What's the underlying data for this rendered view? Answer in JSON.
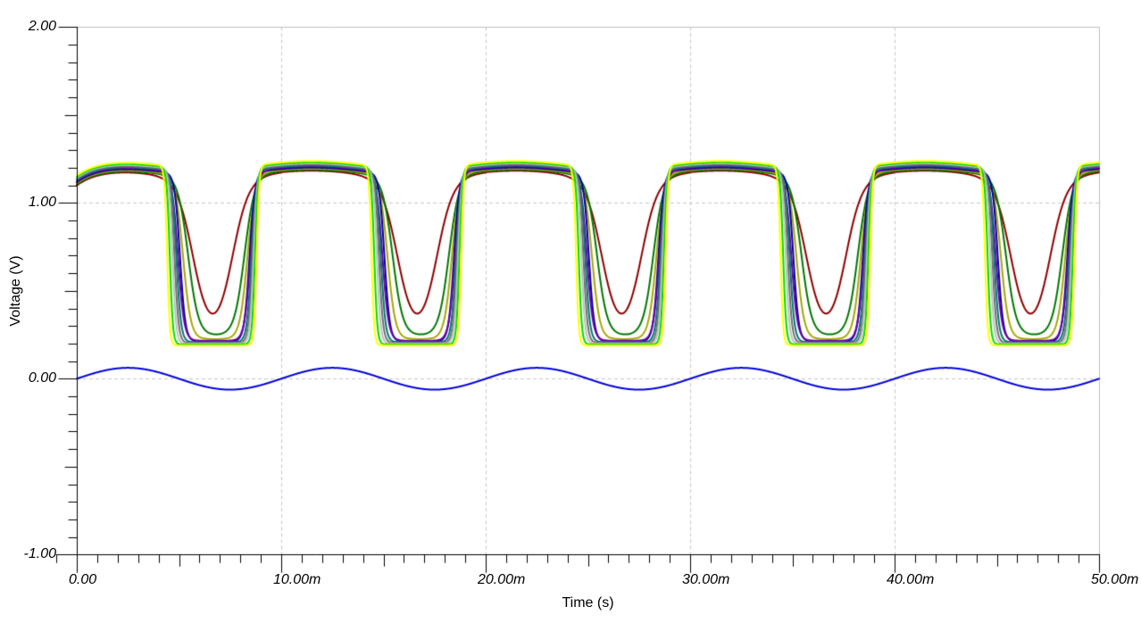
{
  "window": {
    "background": "#FFFFFF"
  },
  "chart_data": {
    "type": "line",
    "title": "",
    "xlabel": "Time (s)",
    "ylabel": "Voltage (V)",
    "x_axis": {
      "range_ms": [
        0,
        50
      ],
      "major_ticks": [
        {
          "ms": 0,
          "label": "0.00"
        },
        {
          "ms": 10,
          "label": "10.00m"
        },
        {
          "ms": 20,
          "label": "20.00m"
        },
        {
          "ms": 30,
          "label": "30.00m"
        },
        {
          "ms": 40,
          "label": "40.00m"
        },
        {
          "ms": 50,
          "label": "50.00m"
        }
      ],
      "minor_divisions_per_major": 10
    },
    "y_axis": {
      "range_v": [
        -1,
        2
      ],
      "major_ticks": [
        {
          "v": 2,
          "label": "2.00"
        },
        {
          "v": 1,
          "label": "1.00"
        },
        {
          "v": 0,
          "label": "0.00"
        },
        {
          "v": -1,
          "label": "-1.00"
        }
      ],
      "minor_divisions_per_major": 10
    },
    "grid": {
      "style": "dashed",
      "color": "#C8C8C8",
      "vertical_lines_ms": [
        10,
        20,
        30,
        40
      ],
      "horizontal_lines_v": [
        1,
        0
      ]
    },
    "axis_color": "#000000",
    "border_color": "#C0C0C0",
    "legend": "none",
    "waveform_period_ms": 10,
    "plateau_ripple": {
      "amplitude_v": 0.02,
      "peak_phase_ms": 1.5
    },
    "startup_transient": {
      "dip_v": 0.075,
      "tau_ms": 1.0
    },
    "series": [
      {
        "id": "input-sine",
        "model": "sine",
        "color": "#0000E0",
        "amplitude_v": 0.062,
        "offset_v": 0,
        "period_ms": 10,
        "phase_delay_ms": 0
      },
      {
        "id": "stage-1-maroon",
        "model": "pulse",
        "color": "#900000",
        "high_v": 1.163,
        "low_v": 0.22,
        "fall_center_ms": 5.7,
        "rise_center_ms": 7.6,
        "edge_width_ms": 0.8
      },
      {
        "id": "stage-2-dark-green",
        "model": "pulse",
        "color": "#007800",
        "high_v": 1.169,
        "low_v": 0.245,
        "fall_center_ms": 5.45,
        "rise_center_ms": 8.2,
        "edge_width_ms": 0.5
      },
      {
        "id": "stage-3-olive",
        "model": "pulse",
        "color": "#A8A800",
        "high_v": 1.175,
        "low_v": 0.225,
        "fall_center_ms": 5.2,
        "rise_center_ms": 8.35,
        "edge_width_ms": 0.38
      },
      {
        "id": "stage-4-navy",
        "model": "pulse",
        "color": "#0000A0",
        "high_v": 1.181,
        "low_v": 0.212,
        "fall_center_ms": 5.05,
        "rise_center_ms": 8.45,
        "edge_width_ms": 0.26
      },
      {
        "id": "stage-5-purple",
        "model": "pulse",
        "color": "#7000A8",
        "high_v": 1.187,
        "low_v": 0.216,
        "fall_center_ms": 4.95,
        "rise_center_ms": 8.5,
        "edge_width_ms": 0.3
      },
      {
        "id": "stage-6-teal",
        "model": "pulse",
        "color": "#007878",
        "high_v": 1.193,
        "low_v": 0.208,
        "fall_center_ms": 4.87,
        "rise_center_ms": 8.55,
        "edge_width_ms": 0.23
      },
      {
        "id": "stage-7-gray",
        "model": "pulse",
        "color": "#707070",
        "high_v": 1.199,
        "low_v": 0.204,
        "fall_center_ms": 4.78,
        "rise_center_ms": 8.6,
        "edge_width_ms": 0.2
      },
      {
        "id": "stage-8-silver",
        "model": "pulse",
        "color": "#C0C0C0",
        "high_v": 1.205,
        "low_v": 0.2,
        "fall_center_ms": 4.68,
        "rise_center_ms": 8.65,
        "edge_width_ms": 0.18
      },
      {
        "id": "stage-9-lime",
        "model": "pulse",
        "color": "#00DC00",
        "high_v": 1.211,
        "low_v": 0.195,
        "fall_center_ms": 4.55,
        "rise_center_ms": 8.72,
        "edge_width_ms": 0.15
      },
      {
        "id": "stage-10-yellow",
        "model": "pulse",
        "color": "#FFFF00",
        "high_v": 1.218,
        "low_v": 0.19,
        "fall_center_ms": 4.42,
        "rise_center_ms": 8.8,
        "edge_width_ms": 0.13
      }
    ]
  }
}
